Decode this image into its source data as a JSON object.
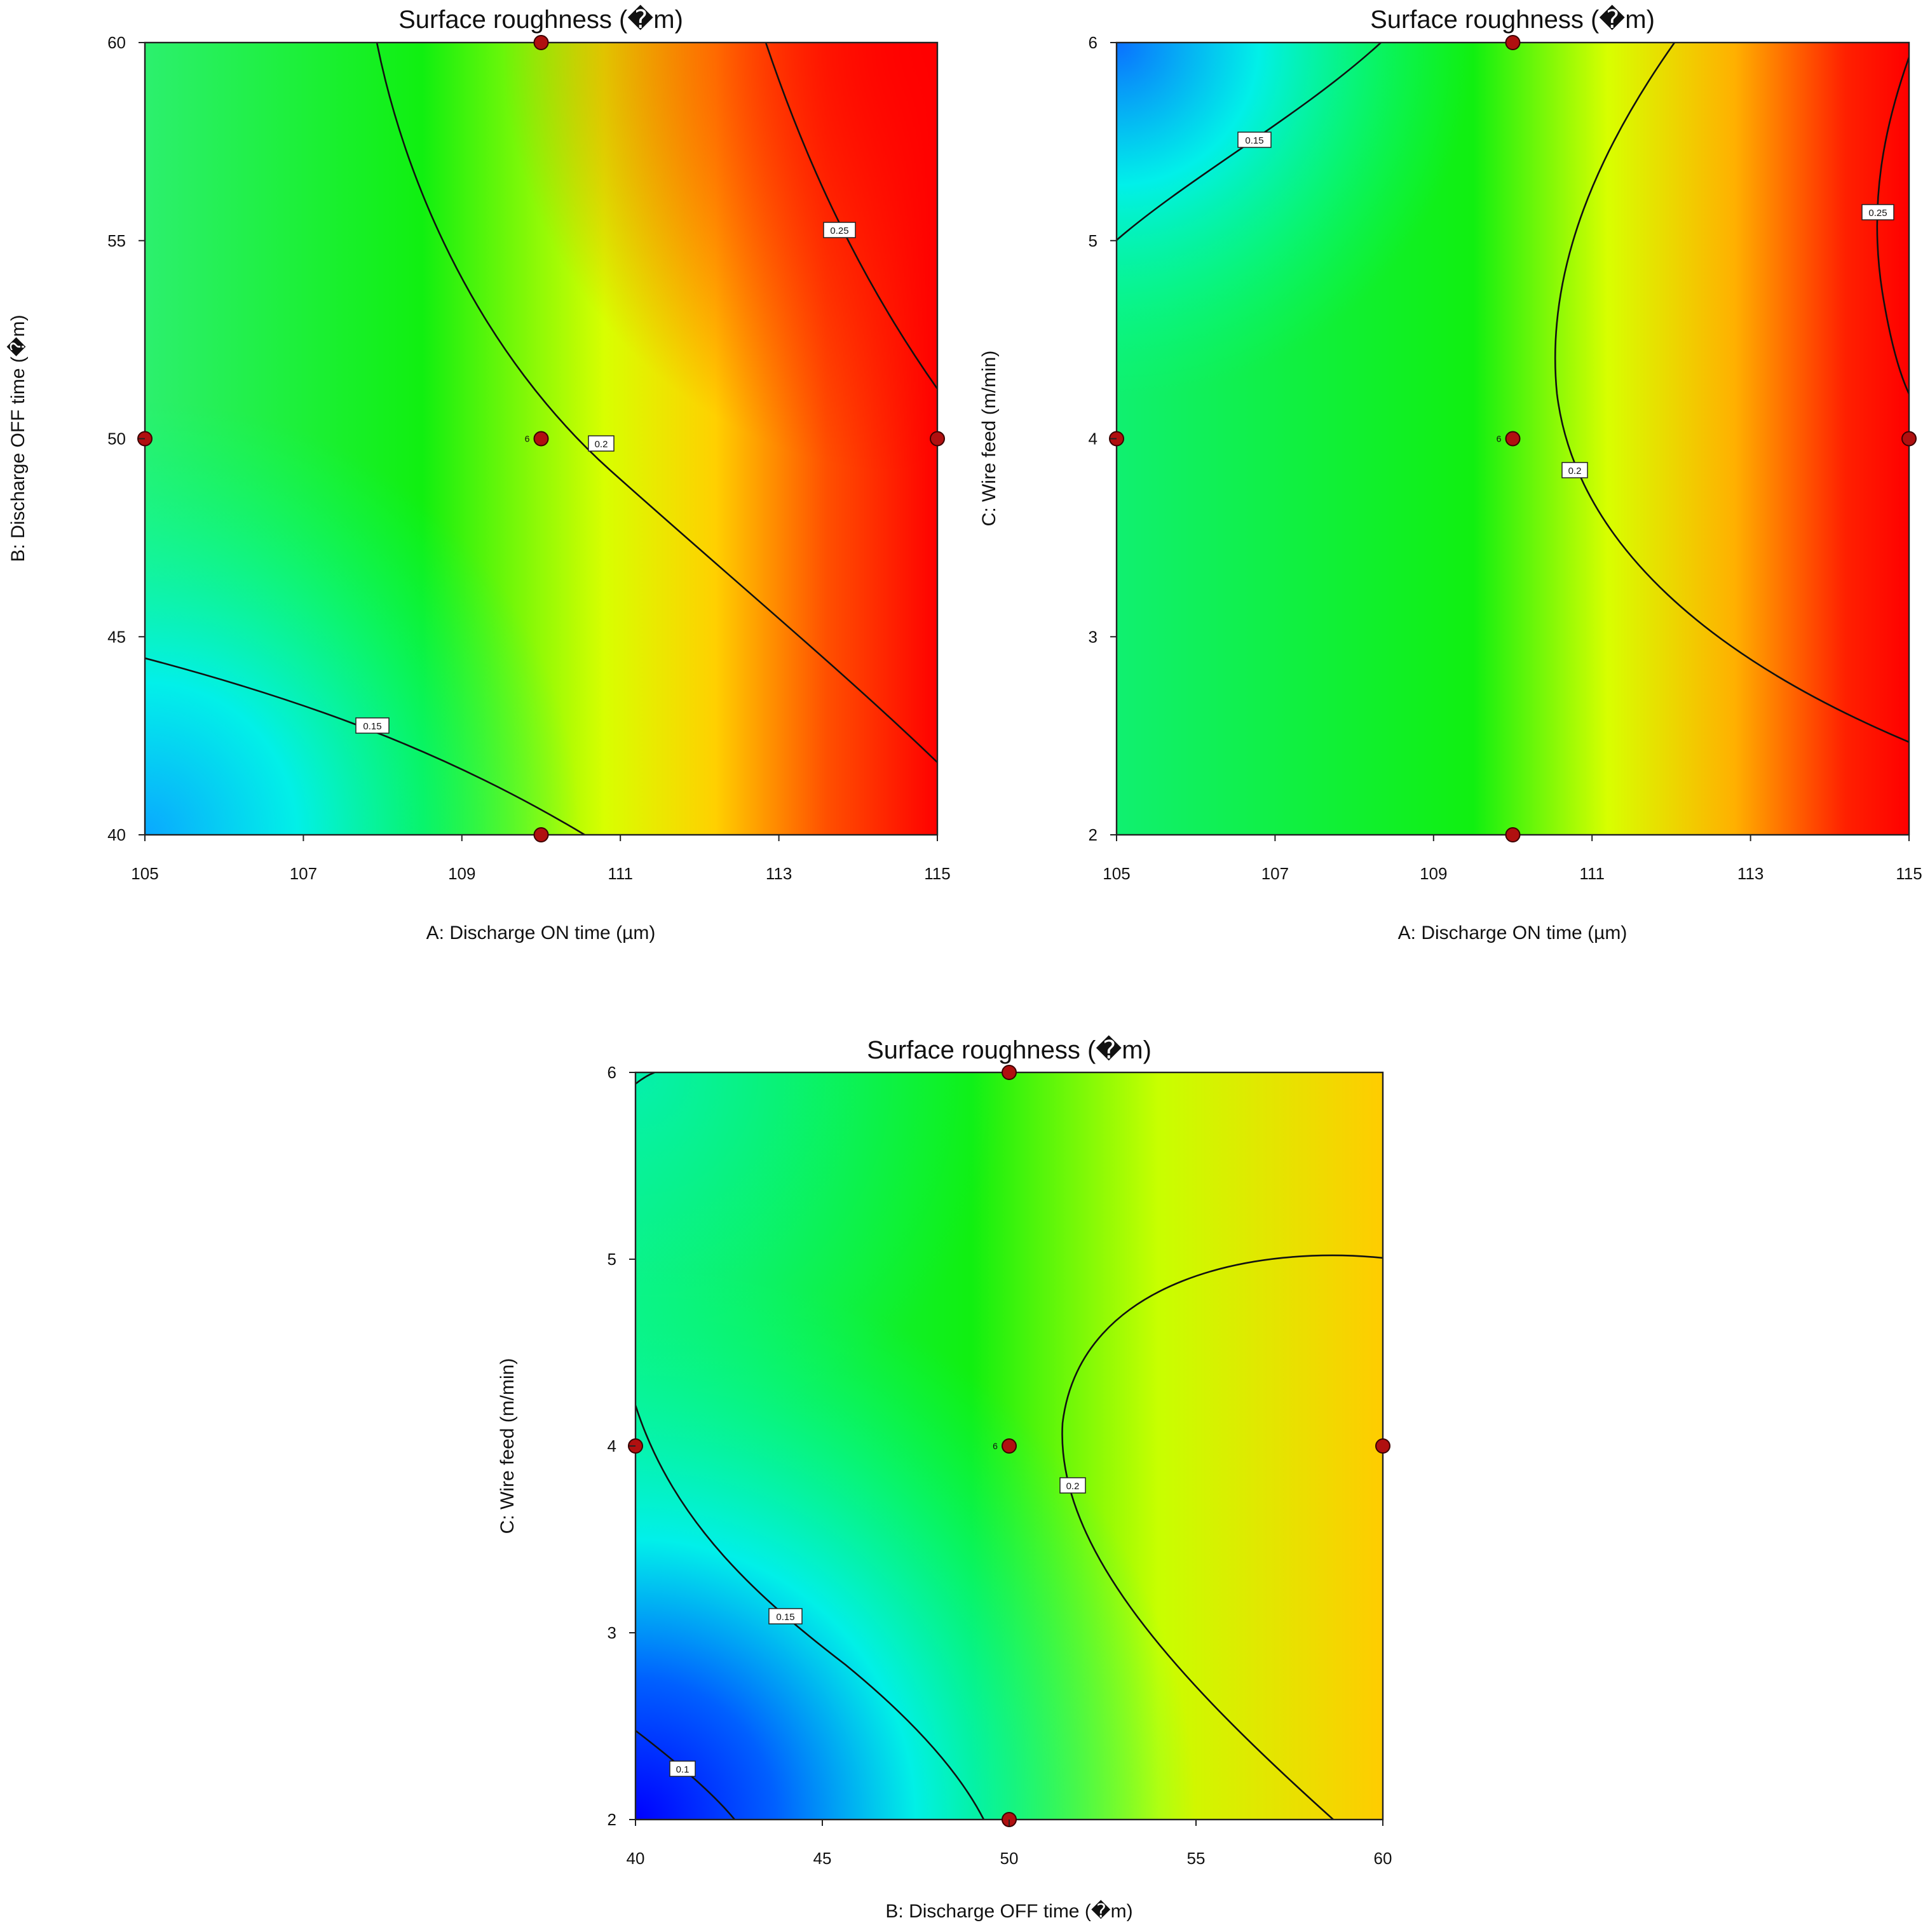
{
  "chart_data": [
    {
      "type": "contour",
      "title": "Surface roughness (�m)",
      "xlabel": "A: Discharge ON time (µm)",
      "ylabel": "B: Discharge OFF time  (�m)",
      "xlim": [
        105,
        115
      ],
      "ylim": [
        40,
        60
      ],
      "xticks": [
        "105",
        "107",
        "109",
        "111",
        "113",
        "115"
      ],
      "yticks": [
        "40",
        "45",
        "50",
        "55",
        "60"
      ],
      "contour_levels": [
        {
          "label": "0.15",
          "value": 0.15
        },
        {
          "label": "0.2",
          "value": 0.2
        },
        {
          "label": "0.25",
          "value": 0.25
        }
      ],
      "design_points": [
        {
          "x": 110,
          "y": 60
        },
        {
          "x": 105,
          "y": 50
        },
        {
          "x": 110,
          "y": 50,
          "replicates": "6"
        },
        {
          "x": 115,
          "y": 50
        },
        {
          "x": 110,
          "y": 40
        }
      ]
    },
    {
      "type": "contour",
      "title": "Surface roughness (�m)",
      "xlabel": "A: Discharge ON time (µm)",
      "ylabel": "C: Wire feed (m/min)",
      "xlim": [
        105,
        115
      ],
      "ylim": [
        2,
        6
      ],
      "xticks": [
        "105",
        "107",
        "109",
        "111",
        "113",
        "115"
      ],
      "yticks": [
        "2",
        "3",
        "4",
        "5",
        "6"
      ],
      "contour_levels": [
        {
          "label": "0.15",
          "value": 0.15
        },
        {
          "label": "0.2",
          "value": 0.2
        },
        {
          "label": "0.25",
          "value": 0.25
        }
      ],
      "design_points": [
        {
          "x": 110,
          "y": 6
        },
        {
          "x": 105,
          "y": 4
        },
        {
          "x": 110,
          "y": 4,
          "replicates": "6"
        },
        {
          "x": 115,
          "y": 4
        },
        {
          "x": 110,
          "y": 2
        }
      ]
    },
    {
      "type": "contour",
      "title": "Surface roughness (�m)",
      "xlabel": "B: Discharge OFF time  (�m)",
      "ylabel": "C: Wire feed (m/min)",
      "xlim": [
        40,
        60
      ],
      "ylim": [
        2,
        6
      ],
      "xticks": [
        "40",
        "45",
        "50",
        "55",
        "60"
      ],
      "yticks": [
        "2",
        "3",
        "4",
        "5",
        "6"
      ],
      "contour_levels": [
        {
          "label": "0.1",
          "value": 0.1
        },
        {
          "label": "0.15",
          "value": 0.15
        },
        {
          "label": "0.2",
          "value": 0.2
        }
      ],
      "design_points": [
        {
          "x": 50,
          "y": 6
        },
        {
          "x": 40,
          "y": 4
        },
        {
          "x": 50,
          "y": 4,
          "replicates": "6"
        },
        {
          "x": 60,
          "y": 4
        },
        {
          "x": 50,
          "y": 2
        }
      ]
    }
  ],
  "colors": {
    "low": "#0000ff",
    "cyan": "#00ffff",
    "mid": "#00ff00",
    "high_mid": "#ffff00",
    "high": "#ff0000",
    "points": "#b01010"
  }
}
